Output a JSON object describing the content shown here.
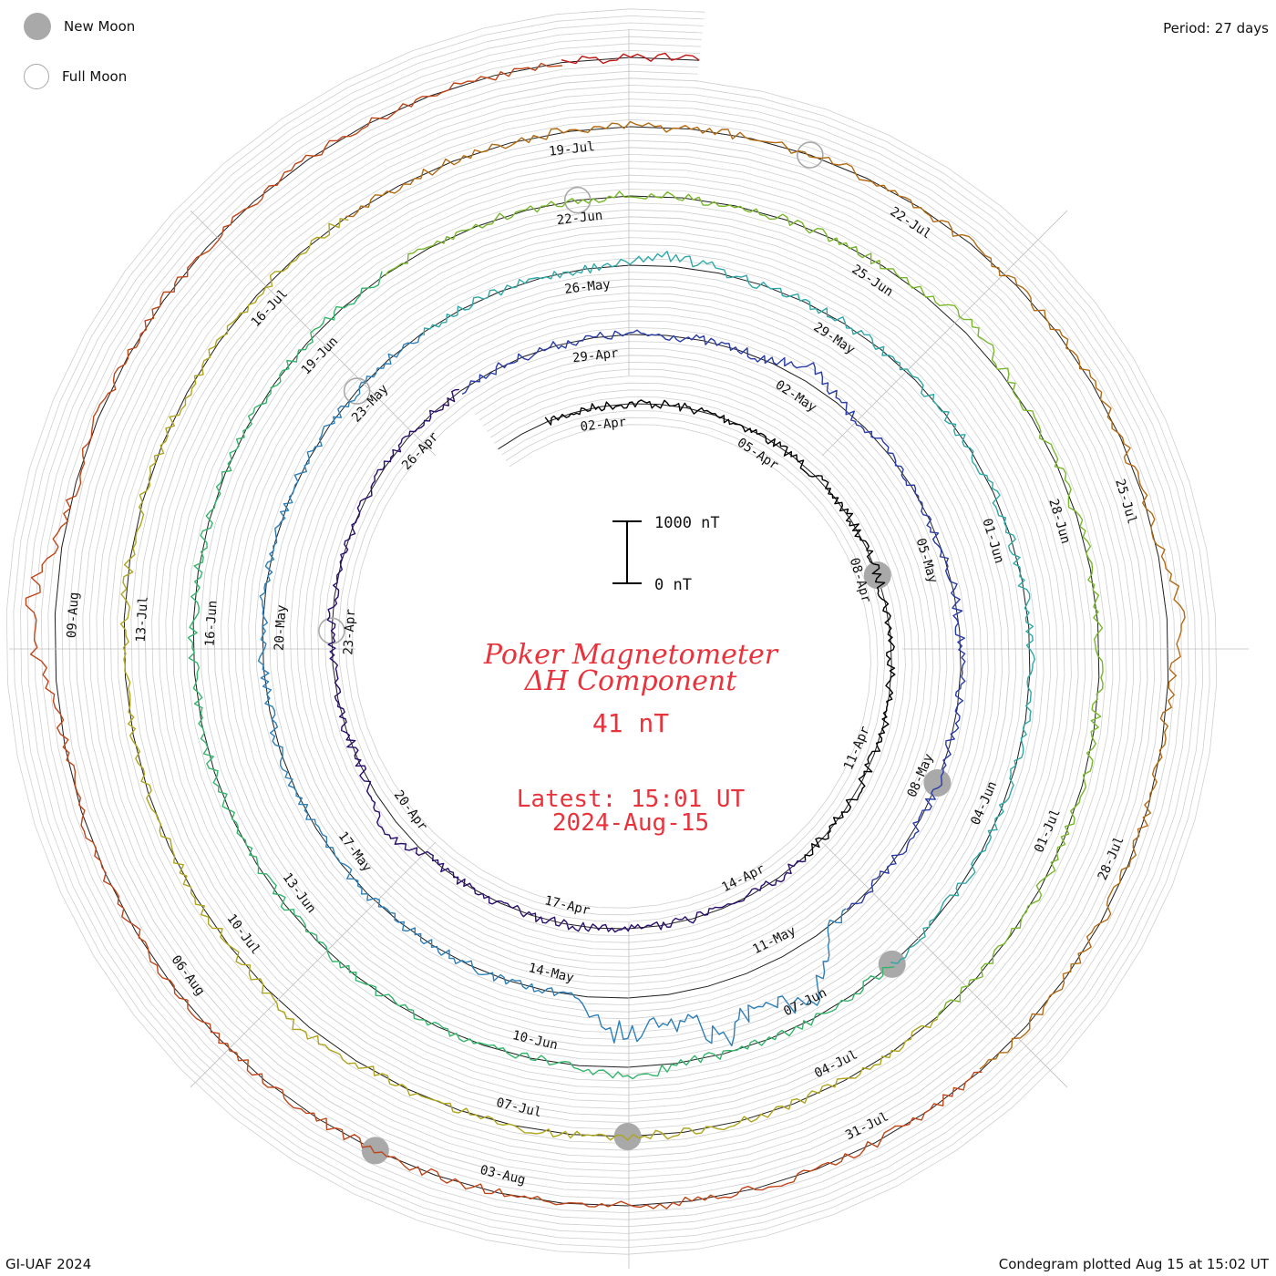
{
  "legend": {
    "new_moon": "New Moon",
    "full_moon": "Full Moon",
    "new_moon_color": "#a9a9a9",
    "full_moon_color": "#a9a9a9"
  },
  "period_label": "Period: 27 days",
  "footer_left": "GI-UAF 2024",
  "footer_right": "Condegram plotted Aug 15 at 15:02 UT",
  "center": {
    "title_line1": "Poker Magnetometer",
    "title_line2": "ΔH Component",
    "value": "41 nT",
    "latest_line1": "Latest: 15:01 UT",
    "latest_line2": "2024-Aug-15",
    "text_color": "#e8333c"
  },
  "scale_bar": {
    "top_label": "1000 nT",
    "bottom_label": "0 nT"
  },
  "chart_data": {
    "type": "line",
    "subtype": "spiral condegram",
    "period_days": 27,
    "start": "2024-03-31",
    "end": "2024-08-15",
    "date_labels": [
      {
        "text": "02-Apr",
        "day": 2
      },
      {
        "text": "05-Apr",
        "day": 5
      },
      {
        "text": "08-Apr",
        "day": 8
      },
      {
        "text": "11-Apr",
        "day": 11
      },
      {
        "text": "14-Apr",
        "day": 14
      },
      {
        "text": "17-Apr",
        "day": 17
      },
      {
        "text": "20-Apr",
        "day": 20
      },
      {
        "text": "23-Apr",
        "day": 23
      },
      {
        "text": "26-Apr",
        "day": 26
      },
      {
        "text": "29-Apr",
        "day": 29
      },
      {
        "text": "02-May",
        "day": 32
      },
      {
        "text": "05-May",
        "day": 35
      },
      {
        "text": "08-May",
        "day": 38
      },
      {
        "text": "11-May",
        "day": 41
      },
      {
        "text": "14-May",
        "day": 44
      },
      {
        "text": "17-May",
        "day": 47
      },
      {
        "text": "20-May",
        "day": 50
      },
      {
        "text": "23-May",
        "day": 53
      },
      {
        "text": "26-May",
        "day": 56
      },
      {
        "text": "29-May",
        "day": 59
      },
      {
        "text": "01-Jun",
        "day": 62
      },
      {
        "text": "04-Jun",
        "day": 65
      },
      {
        "text": "07-Jun",
        "day": 68
      },
      {
        "text": "10-Jun",
        "day": 71
      },
      {
        "text": "13-Jun",
        "day": 74
      },
      {
        "text": "16-Jun",
        "day": 77
      },
      {
        "text": "19-Jun",
        "day": 80
      },
      {
        "text": "22-Jun",
        "day": 83
      },
      {
        "text": "25-Jun",
        "day": 86
      },
      {
        "text": "28-Jun",
        "day": 89
      },
      {
        "text": "01-Jul",
        "day": 92
      },
      {
        "text": "04-Jul",
        "day": 95
      },
      {
        "text": "07-Jul",
        "day": 98
      },
      {
        "text": "10-Jul",
        "day": 101
      },
      {
        "text": "13-Jul",
        "day": 104
      },
      {
        "text": "16-Jul",
        "day": 107
      },
      {
        "text": "19-Jul",
        "day": 110
      },
      {
        "text": "22-Jul",
        "day": 113
      },
      {
        "text": "25-Jul",
        "day": 116
      },
      {
        "text": "28-Jul",
        "day": 119
      },
      {
        "text": "31-Jul",
        "day": 122
      },
      {
        "text": "03-Aug",
        "day": 125
      },
      {
        "text": "06-Aug",
        "day": 128
      },
      {
        "text": "09-Aug",
        "day": 131
      }
    ],
    "series": [
      {
        "color": "#000000",
        "baseline": 0,
        "disturbances": [],
        "day_start": 1,
        "day_end": 13
      },
      {
        "color": "#2a0f6e",
        "baseline": 0,
        "disturbances": [
          {
            "day": 20,
            "nT": 350
          }
        ],
        "day_start": 13,
        "day_end": 27
      },
      {
        "color": "#2a3ca8",
        "baseline": 0,
        "disturbances": [
          {
            "day": 32,
            "nT": 300
          }
        ],
        "day_start": 27,
        "day_end": 40
      },
      {
        "color": "#2c7fb8",
        "baseline": 0,
        "disturbances": [
          {
            "day": 41,
            "nT": 1300
          },
          {
            "day": 42,
            "nT": 1200
          },
          {
            "day": 43,
            "nT": 900
          }
        ],
        "day_start": 40,
        "day_end": 54
      },
      {
        "color": "#2fa8a8",
        "baseline": 0,
        "disturbances": [
          {
            "day": 57,
            "nT": 250
          }
        ],
        "day_start": 54,
        "day_end": 67
      },
      {
        "color": "#33b56a",
        "baseline": 0,
        "disturbances": [
          {
            "day": 70,
            "nT": 200
          }
        ],
        "day_start": 67,
        "day_end": 81
      },
      {
        "color": "#78b82a",
        "baseline": 0,
        "disturbances": [
          {
            "day": 87,
            "nT": 250
          }
        ],
        "day_start": 81,
        "day_end": 94
      },
      {
        "color": "#b0a51c",
        "baseline": 0,
        "disturbances": [
          {
            "day": 100,
            "nT": 150
          }
        ],
        "day_start": 94,
        "day_end": 108
      },
      {
        "color": "#b36b14",
        "baseline": 0,
        "disturbances": [
          {
            "day": 117,
            "nT": 300
          },
          {
            "day": 122,
            "nT": 250
          }
        ],
        "day_start": 108,
        "day_end": 121
      },
      {
        "color": "#c0461a",
        "baseline": 0,
        "disturbances": [
          {
            "day": 131,
            "nT": 600
          }
        ],
        "day_start": 121,
        "day_end": 137
      },
      {
        "color": "#c21414",
        "baseline": 0,
        "disturbances": [
          {
            "day": 136,
            "nT": 200
          }
        ],
        "day_start": 137,
        "day_end": 138
      }
    ],
    "new_moons": [
      8,
      38,
      67,
      97,
      126
    ],
    "full_moons": [
      23,
      53,
      83,
      112
    ]
  }
}
